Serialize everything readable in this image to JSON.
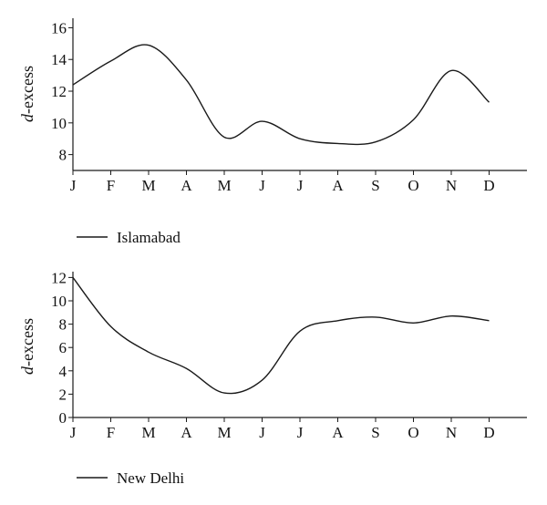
{
  "chart_data": [
    {
      "type": "line",
      "title": "",
      "xlabel": "",
      "ylabel_italic": "d",
      "ylabel_rest": "-excess",
      "categories": [
        "J",
        "F",
        "M",
        "A",
        "M",
        "J",
        "J",
        "A",
        "S",
        "O",
        "N",
        "D"
      ],
      "ylim": [
        7,
        16.6
      ],
      "yticks": [
        8,
        10,
        12,
        14,
        16
      ],
      "legend_position": "bottom-left",
      "grid": false,
      "series": [
        {
          "name": "Islamabad",
          "values": [
            12.4,
            13.9,
            14.9,
            12.7,
            9.1,
            10.1,
            9.0,
            8.7,
            8.8,
            10.2,
            13.3,
            11.3
          ]
        }
      ]
    },
    {
      "type": "line",
      "title": "",
      "xlabel": "",
      "ylabel_italic": "d",
      "ylabel_rest": "-excess",
      "categories": [
        "J",
        "F",
        "M",
        "A",
        "M",
        "J",
        "J",
        "A",
        "S",
        "O",
        "N",
        "D"
      ],
      "ylim": [
        0,
        12.5
      ],
      "yticks": [
        0,
        2,
        4,
        6,
        8,
        10,
        12
      ],
      "legend_position": "bottom-left",
      "grid": false,
      "series": [
        {
          "name": "New Delhi",
          "values": [
            12.0,
            7.8,
            5.6,
            4.2,
            2.1,
            3.2,
            7.4,
            8.3,
            8.6,
            8.1,
            8.7,
            8.3
          ]
        }
      ]
    }
  ],
  "colors": {
    "line": "#1a1a1a",
    "axis": "#1a1a1a",
    "text": "#111111"
  }
}
